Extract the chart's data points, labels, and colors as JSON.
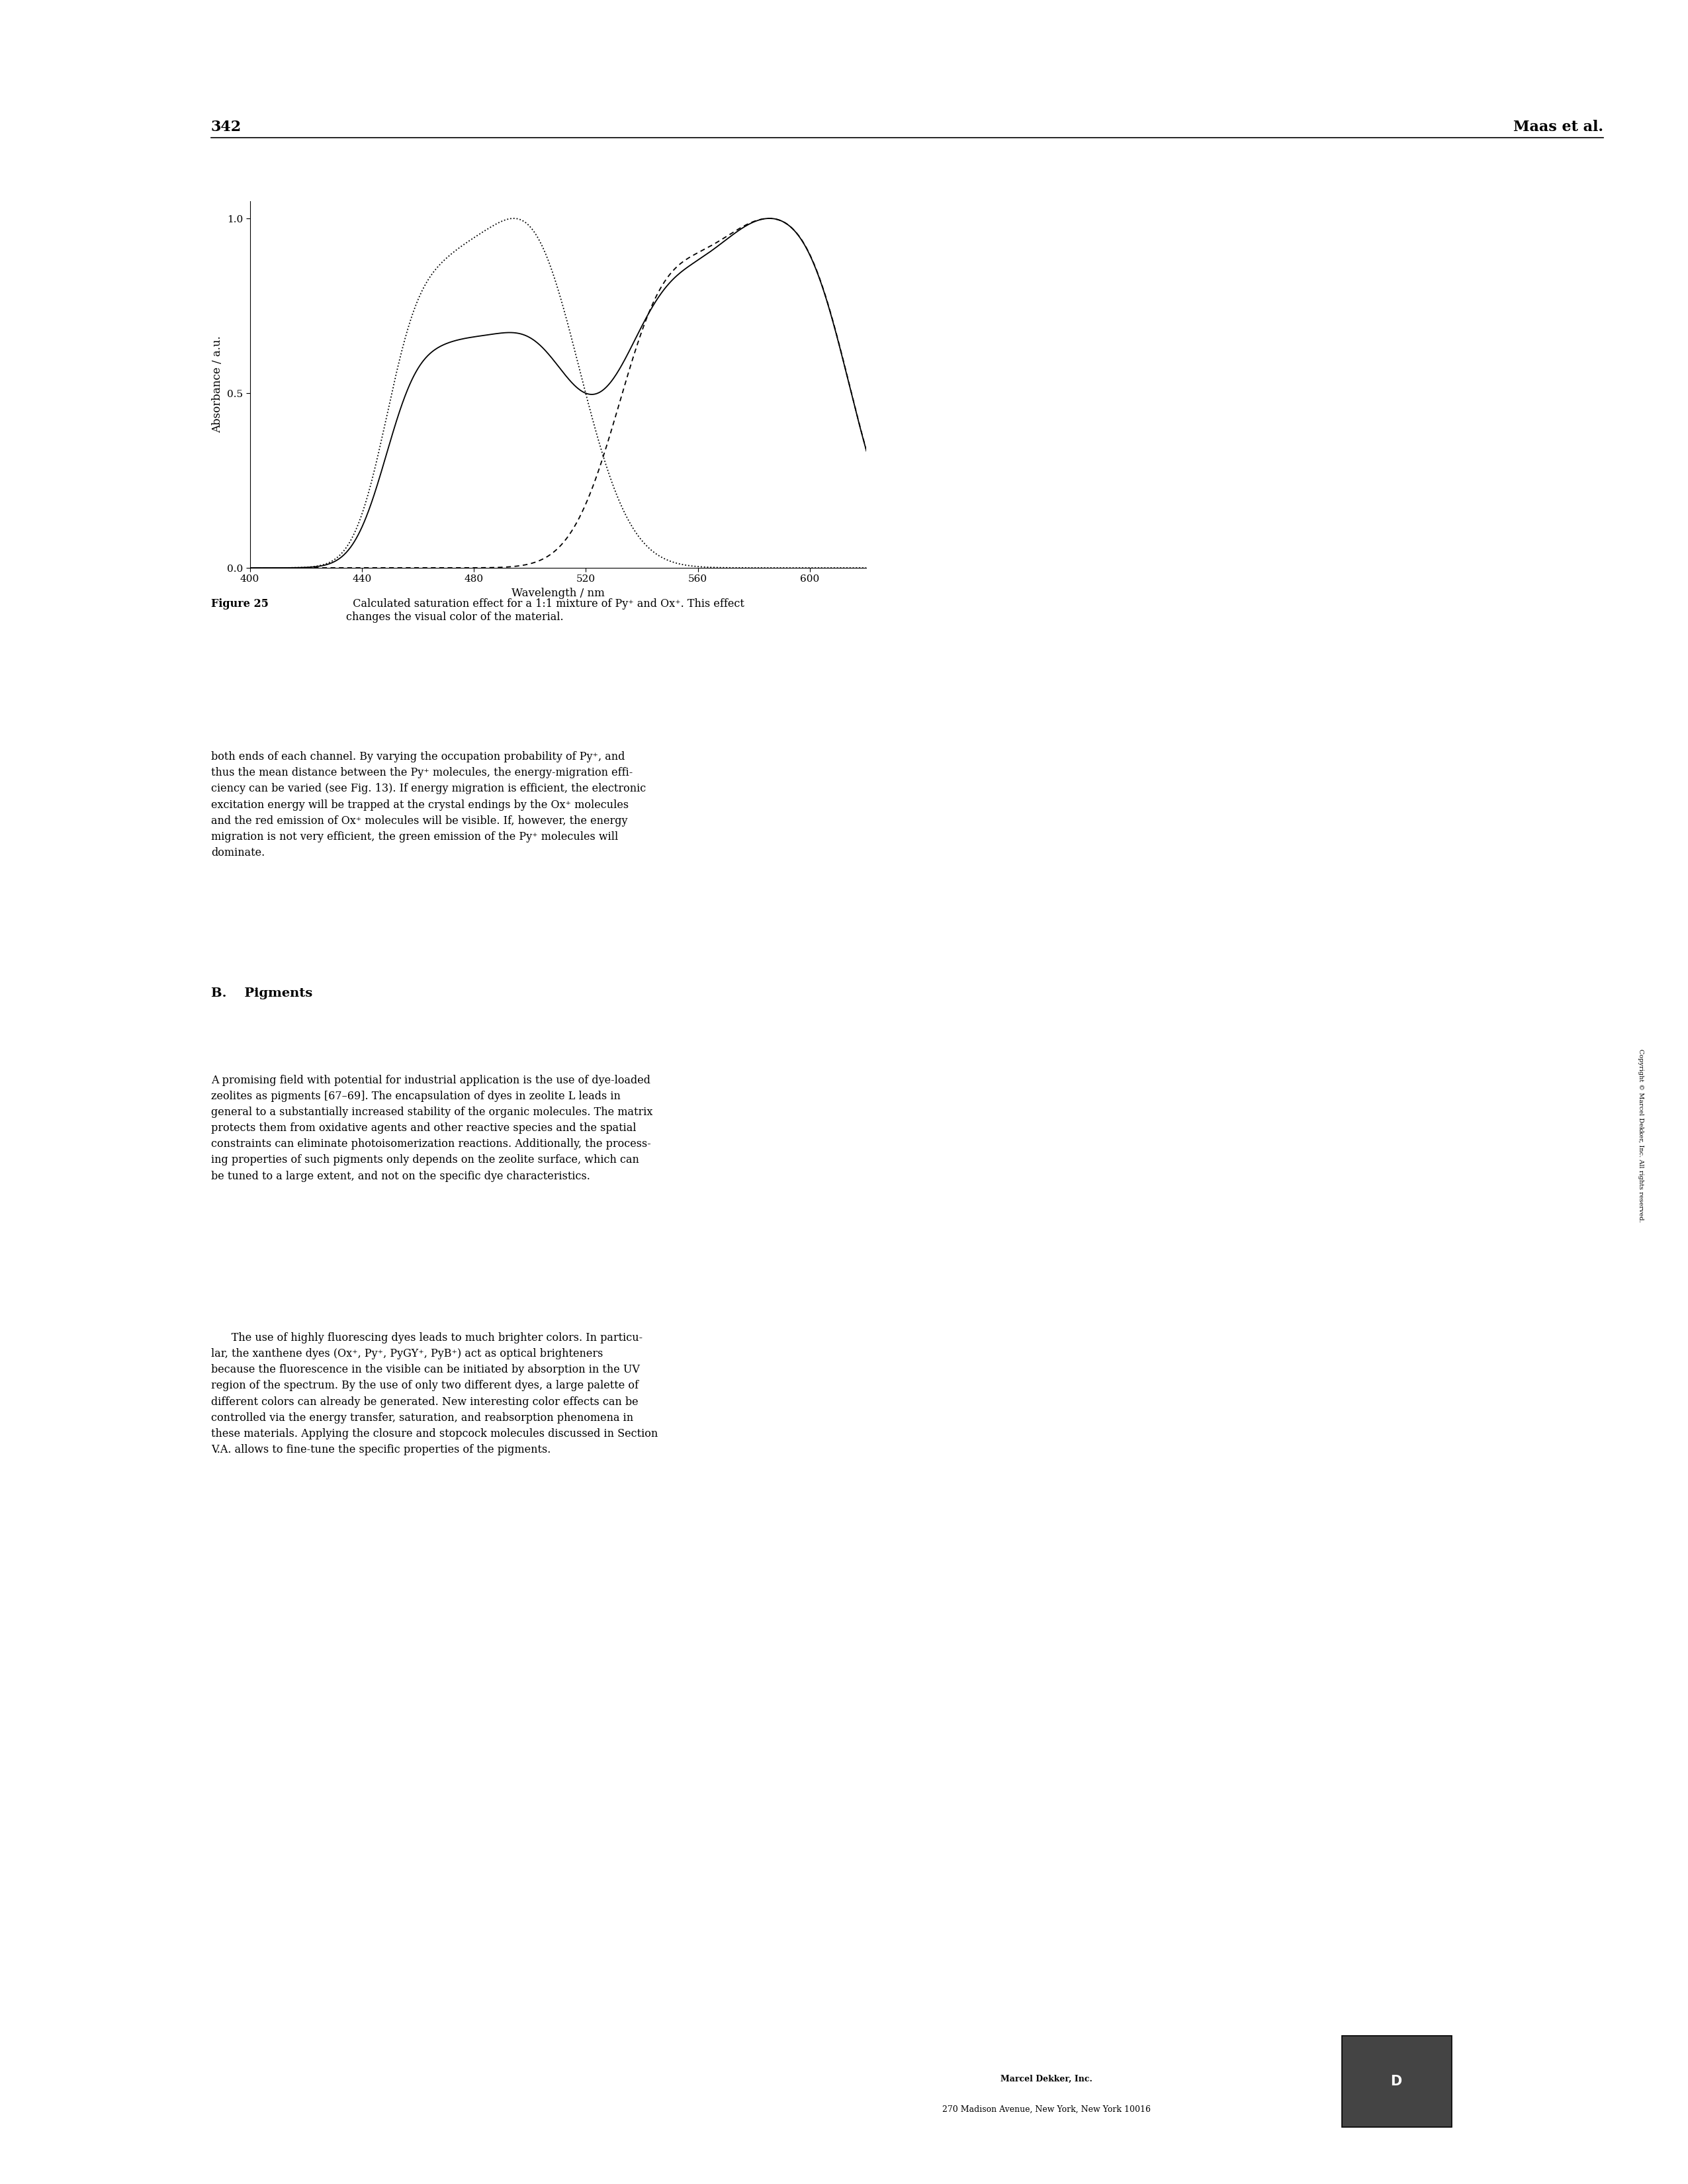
{
  "page_number": "342",
  "header_right": "Maas et al.",
  "fig_caption_bold": "Figure 25",
  "fig_caption_text": "  Calculated saturation effect for a 1:1 mixture of Py⁺ and Ox⁺. This effect\nchanges the visual color of the material.",
  "xlabel": "Wavelength / nm",
  "ylabel": "Absorbance / a.u.",
  "xlim": [
    400,
    620
  ],
  "ylim": [
    0.0,
    1.05
  ],
  "xticks": [
    400,
    440,
    480,
    520,
    560,
    600
  ],
  "yticks": [
    0.0,
    0.5,
    1.0
  ],
  "ytick_labels": [
    "0.0",
    "0.5",
    "1.0"
  ],
  "background_color": "#ffffff",
  "section_header": "B.    Pigments",
  "body_text_1": "both ends of each channel. By varying the occupation probability of Py⁺, and\nthus the mean distance between the Py⁺ molecules, the energy-migration effi-\nciency can be varied (see Fig. 13). If energy migration is efficient, the electronic\nexcitation energy will be trapped at the crystal endings by the Ox⁺ molecules\nand the red emission of Ox⁺ molecules will be visible. If, however, the energy\nmigration is not very efficient, the green emission of the Py⁺ molecules will\ndominate.",
  "body_text_2": "A promising field with potential for industrial application is the use of dye-loaded\nzeolites as pigments [67–69]. The encapsulation of dyes in zeolite L leads in\ngeneral to a substantially increased stability of the organic molecules. The matrix\nprotects them from oxidative agents and other reactive species and the spatial\nconstraints can eliminate photoisomerization reactions. Additionally, the process-\ning properties of such pigments only depends on the zeolite surface, which can\nbe tuned to a large extent, and not on the specific dye characteristics.",
  "body_text_3": "      The use of highly fluorescing dyes leads to much brighter colors. In particu-\nlar, the xanthene dyes (Ox⁺, Py⁺, PyGY⁺, PyB⁺) act as optical brighteners\nbecause the fluorescence in the visible can be initiated by absorption in the UV\nregion of the spectrum. By the use of only two different dyes, a large palette of\ndifferent colors can already be generated. New interesting color effects can be\ncontrolled via the energy transfer, saturation, and reabsorption phenomena in\nthese materials. Applying the closure and stopcock molecules discussed in Section\nV.A. allows to fine-tune the specific properties of the pigments.",
  "footer_company": "Marcel Dekker, Inc.",
  "footer_address": "270 Madison Avenue, New York, New York 10016",
  "copyright_text": "Copyright © Marcel Dekker, Inc. All rights reserved."
}
